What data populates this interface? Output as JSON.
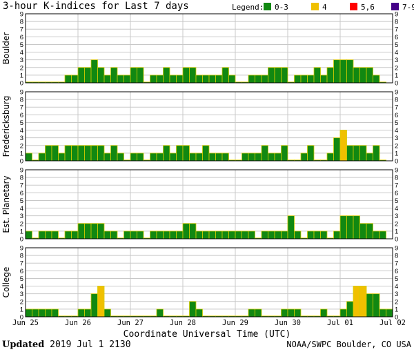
{
  "title": "3-hour K-indices for Last 7 days",
  "legend": {
    "label": "Legend:",
    "items": [
      {
        "label": "0-3",
        "color": "#118811"
      },
      {
        "label": "4",
        "color": "#f0c000"
      },
      {
        "label": "5,6",
        "color": "#ff0000"
      },
      {
        "label": "7-9",
        "color": "#440088"
      }
    ]
  },
  "footer": {
    "updated_label": "Updated",
    "updated_value": "2019 Jul  1 2130",
    "source": "NOAA/SWPC Boulder, CO USA"
  },
  "chart_data": {
    "type": "bar",
    "xlabel": "Coordinate Universal Time (UTC)",
    "x_ticks": [
      "Jun 25",
      "Jun 26",
      "Jun 27",
      "Jun 28",
      "Jun 29",
      "Jun 30",
      "Jul 01",
      "Jul 02"
    ],
    "ylim": [
      0,
      9
    ],
    "y_ticks": [
      "0",
      "1",
      "2",
      "3",
      "4",
      "5",
      "6",
      "7",
      "8",
      "9"
    ],
    "interval_hours": 3,
    "panels": [
      {
        "name": "Boulder",
        "values": [
          0,
          0,
          0,
          0,
          0,
          0,
          1,
          1,
          2,
          2,
          3,
          2,
          1,
          2,
          1,
          1,
          2,
          2,
          0,
          1,
          1,
          2,
          1,
          1,
          2,
          2,
          1,
          1,
          1,
          1,
          2,
          1,
          0,
          0,
          1,
          1,
          1,
          2,
          2,
          2,
          0,
          1,
          1,
          1,
          2,
          1,
          2,
          3,
          3,
          3,
          2,
          2,
          2,
          1,
          0
        ]
      },
      {
        "name": "Fredericksburg",
        "values": [
          1,
          0,
          1,
          2,
          2,
          1,
          2,
          2,
          2,
          2,
          2,
          2,
          1,
          2,
          1,
          0,
          1,
          1,
          0,
          1,
          1,
          2,
          1,
          2,
          2,
          1,
          1,
          2,
          1,
          1,
          1,
          0,
          0,
          1,
          1,
          1,
          2,
          1,
          1,
          2,
          0,
          0,
          1,
          2,
          0,
          0,
          1,
          3,
          4,
          2,
          2,
          2,
          1,
          2,
          0
        ]
      },
      {
        "name": "Est. Planetary",
        "values": [
          1,
          0,
          1,
          1,
          1,
          0,
          1,
          1,
          2,
          2,
          2,
          2,
          1,
          1,
          0,
          1,
          1,
          1,
          0,
          1,
          1,
          1,
          1,
          1,
          2,
          2,
          1,
          1,
          1,
          1,
          1,
          1,
          1,
          1,
          1,
          0,
          1,
          1,
          1,
          1,
          3,
          1,
          0,
          1,
          1,
          1,
          0,
          1,
          3,
          3,
          3,
          2,
          2,
          1,
          1
        ]
      },
      {
        "name": "College",
        "values": [
          1,
          1,
          1,
          1,
          1,
          0,
          0,
          0,
          1,
          1,
          3,
          4,
          1,
          0,
          0,
          0,
          0,
          0,
          0,
          0,
          1,
          0,
          0,
          0,
          0,
          2,
          1,
          0,
          0,
          0,
          0,
          0,
          0,
          0,
          1,
          1,
          0,
          0,
          0,
          1,
          1,
          1,
          0,
          0,
          0,
          1,
          0,
          0,
          1,
          2,
          4,
          4,
          3,
          3,
          1,
          1
        ]
      }
    ]
  }
}
